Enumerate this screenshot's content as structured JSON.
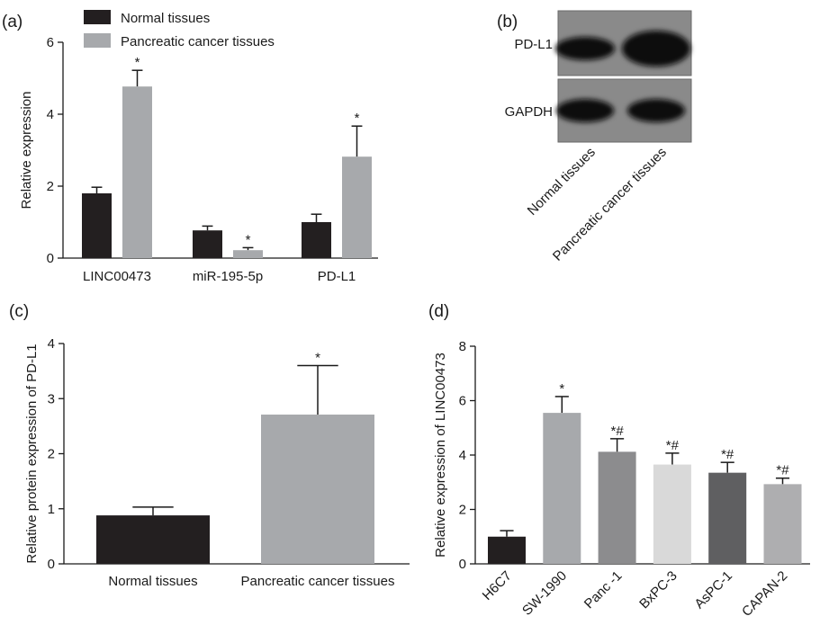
{
  "panels": {
    "a": {
      "letter": "(a)"
    },
    "b": {
      "letter": "(b)"
    },
    "c": {
      "letter": "(c)"
    },
    "d": {
      "letter": "(d)"
    }
  },
  "chart_data": [
    {
      "id": "a",
      "type": "bar",
      "categories": [
        "LINC00473",
        "miR-195-5p",
        "PD-L1"
      ],
      "series": [
        {
          "name": "Normal tissues",
          "color": "#231f20",
          "values": [
            1.8,
            0.77,
            1.0
          ],
          "errors": [
            0.17,
            0.12,
            0.22
          ],
          "annotations": [
            "",
            "",
            ""
          ]
        },
        {
          "name": "Pancreatic cancer tissues",
          "color": "#a7a9ac",
          "values": [
            4.77,
            0.22,
            2.82
          ],
          "errors": [
            0.45,
            0.07,
            0.85
          ],
          "annotations": [
            "*",
            "*",
            "*"
          ]
        }
      ],
      "ylabel": "Relative expression",
      "ylim": [
        0,
        6
      ],
      "yticks": [
        0,
        2,
        4,
        6
      ],
      "legend": "top-left"
    },
    {
      "id": "b",
      "type": "western-blot",
      "row_labels": [
        "PD-L1",
        "GAPDH"
      ],
      "lane_labels": [
        "Normal tissues",
        "Pancreatic cancer tissues"
      ]
    },
    {
      "id": "c",
      "type": "bar",
      "categories": [
        "Normal tissues",
        "Pancreatic cancer tissues"
      ],
      "values": [
        0.88,
        2.71
      ],
      "errors": [
        0.15,
        0.89
      ],
      "colors": [
        "#231f20",
        "#a7a9ac"
      ],
      "annotations": [
        "",
        "*"
      ],
      "ylabel": "Relative protein expression of PD-L1",
      "ylim": [
        0,
        4
      ],
      "yticks": [
        0,
        1,
        2,
        3,
        4
      ]
    },
    {
      "id": "d",
      "type": "bar",
      "categories": [
        "H6C7",
        "SW-1990",
        "Panc -1",
        "BxPC-3",
        "AsPC-1",
        "CAPAN-2"
      ],
      "values": [
        1.0,
        5.55,
        4.12,
        3.65,
        3.35,
        2.93
      ],
      "errors": [
        0.22,
        0.6,
        0.48,
        0.42,
        0.38,
        0.22
      ],
      "colors": [
        "#231f20",
        "#a7a9ac",
        "#8c8c8e",
        "#d9d9d9",
        "#5f5f61",
        "#aeaeb0"
      ],
      "annotations": [
        "",
        "*",
        "*#",
        "*#",
        "*#",
        "*#"
      ],
      "ylabel": "Relative expression of LINC00473",
      "ylim": [
        0,
        8
      ],
      "yticks": [
        0,
        2,
        4,
        6,
        8
      ]
    }
  ]
}
